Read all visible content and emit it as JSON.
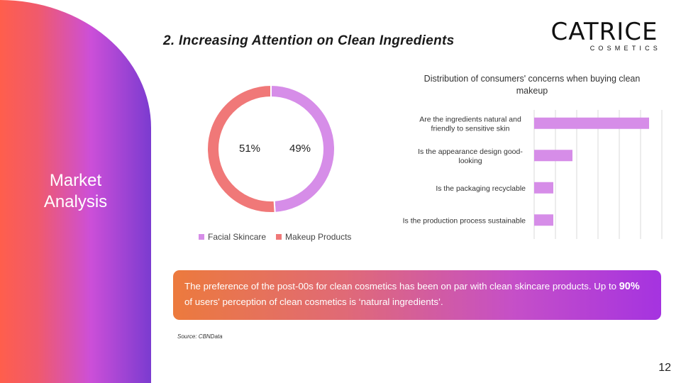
{
  "side_title_line1": "Market",
  "side_title_line2": "Analysis",
  "slide_title": "2. Increasing Attention on Clean Ingredients",
  "logo": {
    "main": "CATRICE",
    "sub": "COSMETICS"
  },
  "chart_data": [
    {
      "type": "pie",
      "labels": [
        "Facial Skincare",
        "Makeup Products"
      ],
      "values": [
        49,
        51
      ],
      "display": [
        "49%",
        "51%"
      ],
      "colors": [
        "#d68de8",
        "#f07878"
      ],
      "legend": "bottom"
    },
    {
      "type": "bar",
      "title": "Distribution of consumers' concerns when buying clean makeup",
      "orientation": "horizontal",
      "categories": [
        "Are the ingredients natural and friendly to sensitive skin",
        "Is the appearance design good-looking",
        "Is the packaging recyclable",
        "Is the production process sustainable"
      ],
      "values": [
        90,
        30,
        15,
        15
      ],
      "xlim": [
        0,
        100
      ],
      "color": "#d68de8",
      "grid": true
    }
  ],
  "callout": {
    "text_before": "The preference of the post-00s for clean cosmetics has been on par with clean skincare products. Up to ",
    "highlight": "90%",
    "text_after": " of users' perception of clean cosmetics is ‘natural ingredients’."
  },
  "source": "Source: CBNData",
  "page_number": "12"
}
